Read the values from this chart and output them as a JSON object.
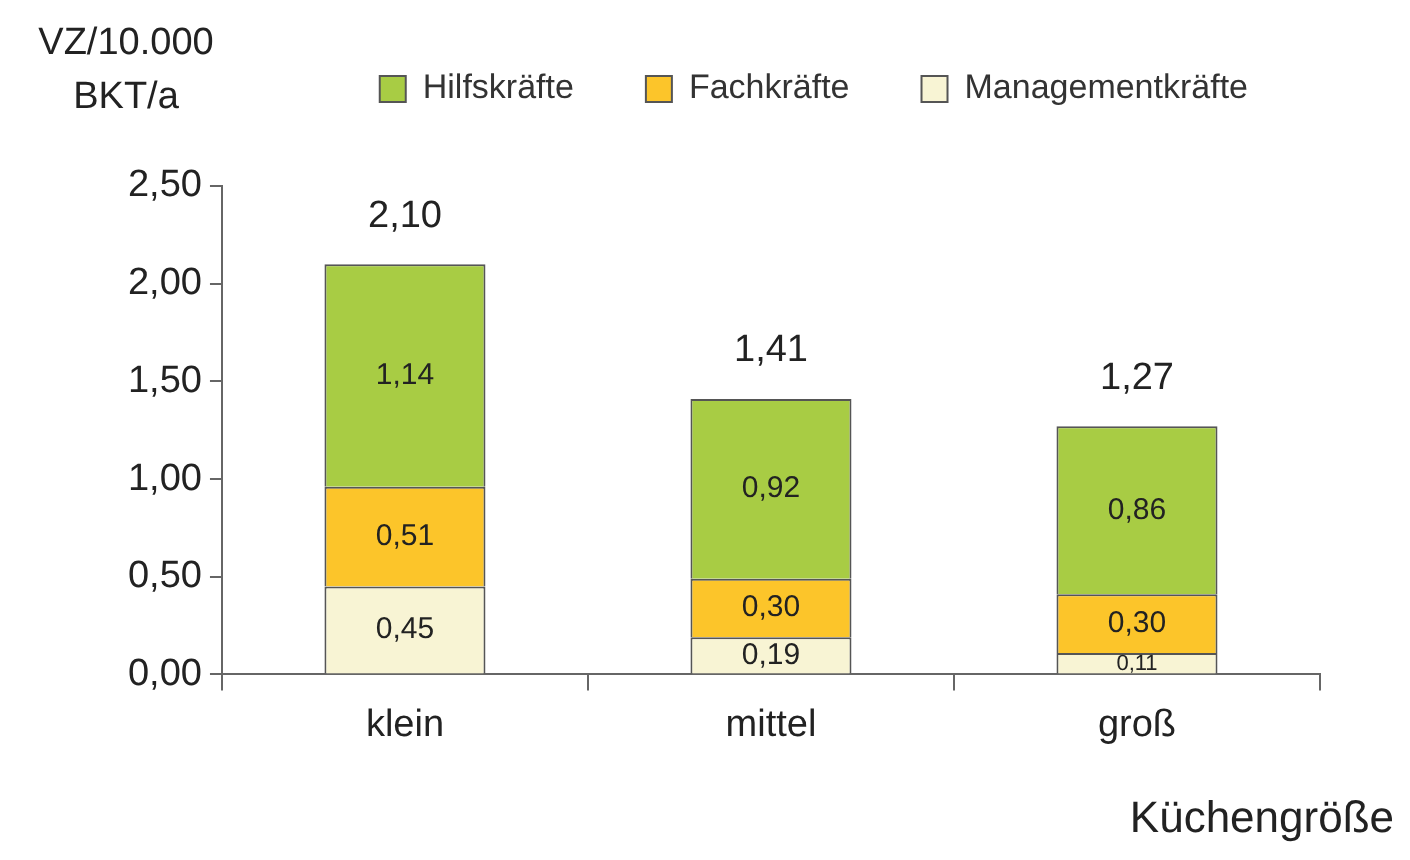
{
  "chart_data": {
    "type": "bar",
    "stacked": true,
    "ylabel": "VZ/10.000 BKT/a",
    "xlabel": "Küchengröße",
    "categories": [
      "klein",
      "mittel",
      "groß"
    ],
    "series": [
      {
        "name": "Managementkräfte",
        "color": "#f8f4d4",
        "values": [
          0.45,
          0.19,
          0.11
        ],
        "value_labels": [
          "0,45",
          "0,19",
          "0,11"
        ]
      },
      {
        "name": "Fachkräfte",
        "color": "#fcc52a",
        "values": [
          0.51,
          0.3,
          0.3
        ],
        "value_labels": [
          "0,51",
          "0,30",
          "0,30"
        ]
      },
      {
        "name": "Hilfskräfte",
        "color": "#a8cc44",
        "values": [
          1.14,
          0.92,
          0.86
        ],
        "value_labels": [
          "1,14",
          "0,92",
          "0,86"
        ]
      }
    ],
    "totals": [
      "2,10",
      "1,41",
      "1,27"
    ],
    "ylim": [
      0,
      2.5
    ],
    "yticks": [
      {
        "value": 0,
        "label": "0,00"
      },
      {
        "value": 0.5,
        "label": "0,50"
      },
      {
        "value": 1,
        "label": "1,00"
      },
      {
        "value": 1.5,
        "label": "1,50"
      },
      {
        "value": 2,
        "label": "2,00"
      },
      {
        "value": 2.5,
        "label": "2,50"
      }
    ],
    "grid": false,
    "legend": "top"
  }
}
